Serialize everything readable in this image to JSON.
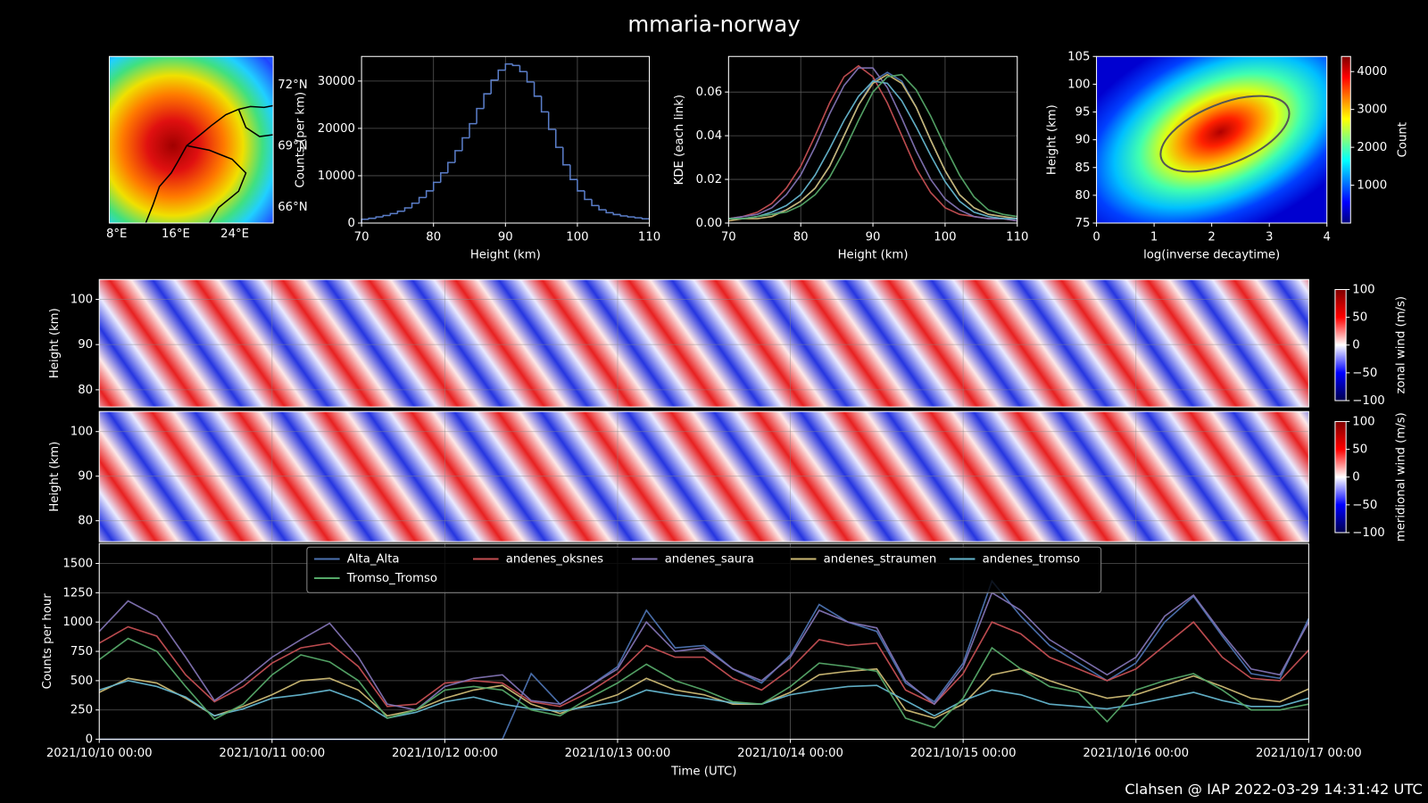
{
  "title": "mmaria-norway",
  "footer": "Clahsen @ IAP 2022-03-29 14:31:42 UTC",
  "chart_data": [
    {
      "type": "map",
      "xlim": [
        7,
        29.2
      ],
      "ylim": [
        65.2,
        73.4
      ],
      "xticks": [
        {
          "value": 8,
          "label": "8°E"
        },
        {
          "value": 16,
          "label": "16°E"
        },
        {
          "value": 24,
          "label": "24°E"
        }
      ],
      "yticks": [
        {
          "value": 72,
          "label": "72°N"
        },
        {
          "value": 69,
          "label": "69°N"
        },
        {
          "value": 66,
          "label": "66°N"
        }
      ]
    },
    {
      "type": "histogram",
      "color": "#5a7dc8",
      "bins": [
        70,
        71,
        72,
        73,
        74,
        75,
        76,
        77,
        78,
        79,
        80,
        81,
        82,
        83,
        84,
        85,
        86,
        87,
        88,
        89,
        90,
        91,
        92,
        93,
        94,
        95,
        96,
        97,
        98,
        99,
        100,
        101,
        102,
        103,
        104,
        105,
        106,
        107,
        108,
        109,
        110
      ],
      "values": [
        800,
        1000,
        1300,
        1600,
        2000,
        2500,
        3200,
        4200,
        5400,
        6800,
        8600,
        10600,
        12800,
        15300,
        18000,
        21000,
        24200,
        27300,
        30200,
        32300,
        33600,
        33300,
        32000,
        29800,
        26800,
        23500,
        19800,
        16000,
        12300,
        9200,
        6800,
        5000,
        3700,
        2800,
        2200,
        1800,
        1500,
        1300,
        1100,
        900
      ],
      "xlim": [
        70,
        110
      ],
      "ylim": [
        0,
        35200
      ],
      "xticks": [
        70,
        80,
        90,
        100,
        110
      ],
      "yticks": [
        0,
        10000,
        20000,
        30000
      ],
      "xlabel": "Height (km)",
      "ylabel": "Counts (per km)",
      "grid": true
    },
    {
      "type": "line",
      "x": [
        70,
        72,
        74,
        76,
        78,
        80,
        82,
        84,
        86,
        88,
        90,
        92,
        94,
        96,
        98,
        100,
        102,
        104,
        106,
        108,
        110
      ],
      "series": [
        {
          "color": "#4c72b0",
          "values": [
            0.002,
            0.002,
            0.003,
            0.004,
            0.006,
            0.01,
            0.016,
            0.026,
            0.04,
            0.054,
            0.065,
            0.069,
            0.065,
            0.053,
            0.038,
            0.024,
            0.013,
            0.007,
            0.004,
            0.003,
            0.002
          ]
        },
        {
          "color": "#c44e52",
          "values": [
            0.002,
            0.003,
            0.005,
            0.009,
            0.016,
            0.026,
            0.04,
            0.055,
            0.067,
            0.072,
            0.067,
            0.055,
            0.04,
            0.025,
            0.014,
            0.007,
            0.004,
            0.003,
            0.002,
            0.002,
            0.001
          ]
        },
        {
          "color": "#8172b2",
          "values": [
            0.002,
            0.003,
            0.004,
            0.007,
            0.013,
            0.022,
            0.035,
            0.05,
            0.063,
            0.071,
            0.071,
            0.062,
            0.048,
            0.033,
            0.02,
            0.011,
            0.006,
            0.003,
            0.002,
            0.002,
            0.001
          ]
        },
        {
          "color": "#ccb974",
          "values": [
            0.001,
            0.002,
            0.002,
            0.003,
            0.006,
            0.01,
            0.016,
            0.026,
            0.04,
            0.054,
            0.064,
            0.068,
            0.064,
            0.053,
            0.038,
            0.024,
            0.013,
            0.007,
            0.004,
            0.003,
            0.002
          ]
        },
        {
          "color": "#64b5cd",
          "values": [
            0.002,
            0.002,
            0.003,
            0.005,
            0.008,
            0.013,
            0.022,
            0.034,
            0.047,
            0.058,
            0.065,
            0.064,
            0.056,
            0.044,
            0.031,
            0.019,
            0.01,
            0.005,
            0.003,
            0.002,
            0.002
          ]
        },
        {
          "color": "#55a868",
          "values": [
            0.002,
            0.002,
            0.003,
            0.004,
            0.005,
            0.008,
            0.013,
            0.021,
            0.033,
            0.047,
            0.06,
            0.067,
            0.068,
            0.061,
            0.049,
            0.035,
            0.022,
            0.012,
            0.006,
            0.004,
            0.003
          ]
        }
      ],
      "xlim": [
        70,
        110
      ],
      "ylim": [
        0,
        0.0763
      ],
      "xticks": [
        70,
        80,
        90,
        100,
        110
      ],
      "yticks": [
        {
          "value": 0,
          "label": "0.00"
        },
        0.02,
        0.04,
        0.06
      ],
      "xlabel": "Height (km)",
      "ylabel": "KDE (each link)",
      "grid": true
    },
    {
      "type": "heatmap2d",
      "xlim": [
        0,
        4
      ],
      "ylim": [
        75,
        105
      ],
      "xticks": [
        0,
        1,
        2,
        3,
        4
      ],
      "yticks": [
        75,
        80,
        85,
        90,
        95,
        100,
        105
      ],
      "xlabel": "log(inverse decaytime)",
      "ylabel": "Height (km)",
      "colormap": "jet",
      "clim": [
        0,
        4400
      ],
      "cticks": [
        1000,
        2000,
        3000,
        4000
      ],
      "colorbar_label": "Count"
    },
    {
      "type": "heatmap",
      "xlim": [
        "2021/10/10 00:00",
        "2021/10/17 00:00"
      ],
      "ylim": [
        76.2,
        104.4
      ],
      "yticks": [
        80,
        90,
        100
      ],
      "ylabel": "Height (km)",
      "colormap": "seismic",
      "clim": [
        -100,
        100
      ],
      "cticks": [
        {
          "value": -100,
          "label": "−100"
        },
        {
          "value": -50,
          "label": "−50"
        },
        0,
        50,
        100
      ],
      "colorbar_label": "zonal wind (m/s)",
      "grid": true
    },
    {
      "type": "heatmap",
      "xlim": [
        "2021/10/10 00:00",
        "2021/10/17 00:00"
      ],
      "ylim": [
        75.3,
        104.5
      ],
      "yticks": [
        80,
        90,
        100
      ],
      "ylabel": "Height (km)",
      "colormap": "seismic",
      "clim": [
        -100,
        100
      ],
      "cticks": [
        {
          "value": -100,
          "label": "−100"
        },
        {
          "value": -50,
          "label": "−50"
        },
        0,
        50,
        100
      ],
      "colorbar_label": "meridional wind (m/s)",
      "grid": true
    },
    {
      "type": "line",
      "x": [
        "2021/10/10 00:00",
        "2021/10/10 04:00",
        "2021/10/10 08:00",
        "2021/10/10 12:00",
        "2021/10/10 16:00",
        "2021/10/10 20:00",
        "2021/10/11 00:00",
        "2021/10/11 04:00",
        "2021/10/11 08:00",
        "2021/10/11 12:00",
        "2021/10/11 16:00",
        "2021/10/11 20:00",
        "2021/10/12 00:00",
        "2021/10/12 04:00",
        "2021/10/12 08:00",
        "2021/10/12 12:00",
        "2021/10/12 16:00",
        "2021/10/12 20:00",
        "2021/10/13 00:00",
        "2021/10/13 04:00",
        "2021/10/13 08:00",
        "2021/10/13 12:00",
        "2021/10/13 16:00",
        "2021/10/13 20:00",
        "2021/10/14 00:00",
        "2021/10/14 04:00",
        "2021/10/14 08:00",
        "2021/10/14 12:00",
        "2021/10/14 16:00",
        "2021/10/14 20:00",
        "2021/10/15 00:00",
        "2021/10/15 04:00",
        "2021/10/15 08:00",
        "2021/10/15 12:00",
        "2021/10/15 16:00",
        "2021/10/15 20:00",
        "2021/10/16 00:00",
        "2021/10/16 04:00",
        "2021/10/16 08:00",
        "2021/10/16 12:00",
        "2021/10/16 16:00",
        "2021/10/16 20:00",
        "2021/10/17 00:00"
      ],
      "series": [
        {
          "name": "Alta_Alta",
          "color": "#4c72b0",
          "values": [
            0,
            0,
            0,
            0,
            0,
            0,
            0,
            0,
            0,
            0,
            0,
            0,
            0,
            0,
            0,
            560,
            300,
            450,
            620,
            1100,
            780,
            800,
            600,
            480,
            720,
            1150,
            1000,
            920,
            480,
            320,
            650,
            1350,
            1050,
            800,
            650,
            500,
            650,
            1000,
            1220,
            880,
            560,
            520,
            1030
          ]
        },
        {
          "name": "andenes_oksnes",
          "color": "#c44e52",
          "values": [
            820,
            960,
            880,
            550,
            320,
            450,
            650,
            780,
            820,
            620,
            280,
            300,
            480,
            500,
            480,
            320,
            280,
            400,
            560,
            800,
            700,
            700,
            520,
            420,
            600,
            850,
            800,
            820,
            420,
            300,
            560,
            1000,
            900,
            700,
            600,
            500,
            600,
            800,
            1000,
            700,
            520,
            500,
            760
          ]
        },
        {
          "name": "andenes_saura",
          "color": "#8172b2",
          "values": [
            920,
            1180,
            1050,
            700,
            330,
            500,
            700,
            850,
            990,
            700,
            300,
            250,
            450,
            520,
            550,
            330,
            300,
            450,
            600,
            1000,
            750,
            780,
            600,
            500,
            700,
            1100,
            1000,
            950,
            500,
            300,
            620,
            1250,
            1100,
            850,
            700,
            550,
            700,
            1050,
            1230,
            900,
            600,
            550,
            1000
          ]
        },
        {
          "name": "andenes_straumen",
          "color": "#ccb974",
          "values": [
            400,
            520,
            480,
            350,
            200,
            280,
            380,
            500,
            520,
            420,
            200,
            250,
            350,
            420,
            460,
            300,
            220,
            300,
            380,
            520,
            420,
            380,
            300,
            300,
            400,
            550,
            580,
            600,
            250,
            180,
            300,
            550,
            600,
            500,
            420,
            350,
            380,
            460,
            540,
            450,
            350,
            320,
            430
          ]
        },
        {
          "name": "andenes_tromso",
          "color": "#64b5cd",
          "values": [
            420,
            500,
            450,
            360,
            200,
            260,
            350,
            380,
            420,
            330,
            180,
            230,
            320,
            360,
            300,
            260,
            240,
            280,
            320,
            420,
            380,
            350,
            310,
            300,
            380,
            420,
            450,
            460,
            330,
            200,
            330,
            420,
            380,
            300,
            280,
            260,
            300,
            350,
            400,
            330,
            280,
            280,
            350
          ]
        },
        {
          "name": "Tromso_Tromso",
          "color": "#55a868",
          "values": [
            680,
            860,
            750,
            450,
            170,
            300,
            550,
            720,
            660,
            500,
            180,
            250,
            420,
            450,
            420,
            250,
            200,
            350,
            480,
            640,
            500,
            420,
            320,
            300,
            450,
            650,
            620,
            580,
            180,
            100,
            350,
            780,
            600,
            450,
            400,
            150,
            420,
            500,
            560,
            420,
            250,
            250,
            300
          ]
        }
      ],
      "xlim": [
        "2021/10/10 00:00",
        "2021/10/17 00:00"
      ],
      "ylim": [
        0,
        1670
      ],
      "xticks": [
        "2021/10/10 00:00",
        "2021/10/11 00:00",
        "2021/10/12 00:00",
        "2021/10/13 00:00",
        "2021/10/14 00:00",
        "2021/10/15 00:00",
        "2021/10/16 00:00",
        "2021/10/17 00:00"
      ],
      "yticks": [
        0,
        250,
        500,
        750,
        1000,
        1250,
        1500
      ],
      "xlabel": "Time (UTC)",
      "ylabel": "Counts per hour",
      "grid": true,
      "legend": "upper center",
      "legend_columns": 5
    }
  ]
}
